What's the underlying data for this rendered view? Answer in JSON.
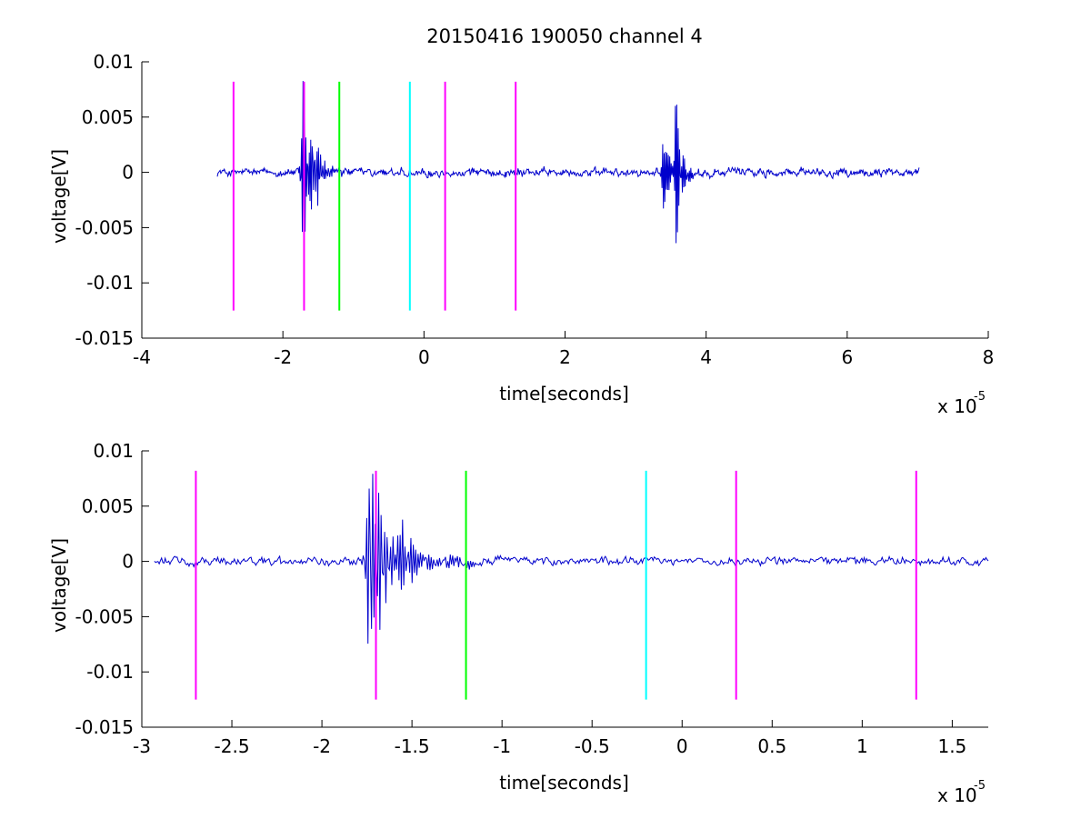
{
  "figure": {
    "title": "20150416 190050 channel 4",
    "background": "#ffffff"
  },
  "chart_data": [
    {
      "type": "line",
      "xlabel": "time[seconds]",
      "ylabel": "voltage[V]",
      "x_exponent_base": "x 10",
      "x_exponent": "-5",
      "xlim": [
        -4,
        8
      ],
      "ylim": [
        -0.015,
        0.01
      ],
      "xticks": [
        -4,
        -2,
        0,
        2,
        4,
        6,
        8
      ],
      "xtick_labels": [
        "-4",
        "-2",
        "0",
        "2",
        "4",
        "6",
        "8"
      ],
      "yticks": [
        -0.015,
        -0.01,
        -0.005,
        0,
        0.005,
        0.01
      ],
      "ytick_labels": [
        "-0.015",
        "-0.01",
        "-0.005",
        "0",
        "0.005",
        "0.01"
      ],
      "grid": false,
      "series": [
        {
          "color": "#0000cc",
          "x_start": -2.93,
          "x_end": 7.02,
          "samples": 1000,
          "baseline_noise": 0.0004,
          "bursts": [
            {
              "t": -1.74,
              "amp": 0.011,
              "freq": 4.5,
              "decay": 0.1
            },
            {
              "t": -1.58,
              "amp": 0.0035,
              "freq": 3.5,
              "decay": 0.12
            },
            {
              "t": 3.38,
              "amp": 0.0085,
              "freq": 5.0,
              "decay": 0.08
            },
            {
              "t": 3.56,
              "amp": 0.007,
              "freq": 4.5,
              "decay": 0.08
            }
          ]
        }
      ],
      "markers": [
        {
          "x": -2.7,
          "color": "#ff00ff",
          "y_top": 0.0082,
          "y_bottom": -0.0125
        },
        {
          "x": -1.7,
          "color": "#ff00ff",
          "y_top": 0.0082,
          "y_bottom": -0.0125
        },
        {
          "x": -1.2,
          "color": "#00ff00",
          "y_top": 0.0082,
          "y_bottom": -0.0125
        },
        {
          "x": -0.2,
          "color": "#00ffff",
          "y_top": 0.0082,
          "y_bottom": -0.0125
        },
        {
          "x": 0.3,
          "color": "#ff00ff",
          "y_top": 0.0082,
          "y_bottom": -0.0125
        },
        {
          "x": 1.3,
          "color": "#ff00ff",
          "y_top": 0.0082,
          "y_bottom": -0.0125
        }
      ]
    },
    {
      "type": "line",
      "xlabel": "time[seconds]",
      "ylabel": "voltage[V]",
      "x_exponent_base": "x 10",
      "x_exponent": "-5",
      "xlim": [
        -3,
        1.7
      ],
      "ylim": [
        -0.015,
        0.01
      ],
      "xticks": [
        -3,
        -2.5,
        -2,
        -1.5,
        -1,
        -0.5,
        0,
        0.5,
        1,
        1.5
      ],
      "xtick_labels": [
        "-3",
        "-2.5",
        "-2",
        "-1.5",
        "-1",
        "-0.5",
        "0",
        "0.5",
        "1",
        "1.5"
      ],
      "yticks": [
        -0.015,
        -0.01,
        -0.005,
        0,
        0.005,
        0.01
      ],
      "ytick_labels": [
        "-0.015",
        "-0.01",
        "-0.005",
        "0",
        "0.005",
        "0.01"
      ],
      "grid": false,
      "series": [
        {
          "color": "#0000cc",
          "x_start": -2.93,
          "x_end": 1.7,
          "samples": 700,
          "baseline_noise": 0.0004,
          "bursts": [
            {
              "t": -1.74,
              "amp": 0.011,
              "freq": 9.0,
              "decay": 0.08
            },
            {
              "t": -1.58,
              "amp": 0.0035,
              "freq": 7.0,
              "decay": 0.1
            },
            {
              "t": -1.35,
              "amp": 0.0012,
              "freq": 8.0,
              "decay": 0.12
            }
          ]
        }
      ],
      "markers": [
        {
          "x": -2.7,
          "color": "#ff00ff",
          "y_top": 0.0082,
          "y_bottom": -0.0125
        },
        {
          "x": -1.7,
          "color": "#ff00ff",
          "y_top": 0.0082,
          "y_bottom": -0.0125
        },
        {
          "x": -1.2,
          "color": "#00ff00",
          "y_top": 0.0082,
          "y_bottom": -0.0125
        },
        {
          "x": -0.2,
          "color": "#00ffff",
          "y_top": 0.0082,
          "y_bottom": -0.0125
        },
        {
          "x": 0.3,
          "color": "#ff00ff",
          "y_top": 0.0082,
          "y_bottom": -0.0125
        },
        {
          "x": 1.3,
          "color": "#ff00ff",
          "y_top": 0.0082,
          "y_bottom": -0.0125
        }
      ]
    }
  ]
}
